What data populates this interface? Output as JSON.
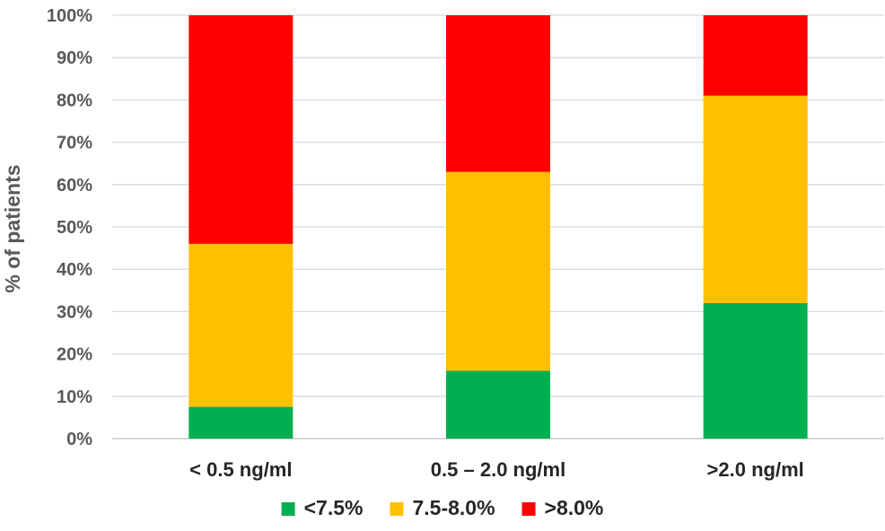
{
  "chart_data": {
    "type": "bar",
    "stacked": true,
    "percent_stacked": true,
    "categories": [
      "< 0.5 ng/ml",
      "0.5 – 2.0 ng/ml",
      ">2.0 ng/ml"
    ],
    "series": [
      {
        "name": "<7.5%",
        "color": "#00b050",
        "values": [
          7.5,
          16.0,
          32.0
        ]
      },
      {
        "name": "7.5-8.0%",
        "color": "#ffc000",
        "values": [
          38.5,
          47.0,
          49.0
        ]
      },
      {
        "name": ">8.0%",
        "color": "#ff0000",
        "values": [
          54.0,
          37.0,
          19.0
        ]
      }
    ],
    "title": "",
    "xlabel": "",
    "ylabel": "% of patients",
    "ylim": [
      0,
      100
    ],
    "yticks": [
      "0%",
      "10%",
      "20%",
      "30%",
      "40%",
      "50%",
      "60%",
      "70%",
      "80%",
      "90%",
      "100%"
    ],
    "grid": true,
    "legend_position": "bottom"
  }
}
